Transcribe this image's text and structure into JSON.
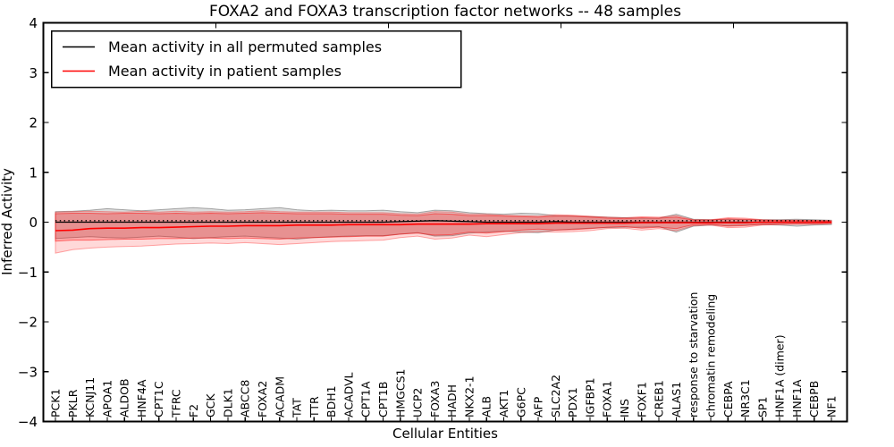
{
  "title": "FOXA2 and FOXA3 transcription factor networks -- 48 samples",
  "legend": {
    "position": "upper left",
    "entries": [
      {
        "label": "Mean activity in all permuted samples",
        "color": "#000000"
      },
      {
        "label": "Mean activity in patient samples",
        "color": "#ff0000"
      }
    ]
  },
  "chart_data": {
    "type": "line",
    "title": "FOXA2 and FOXA3 transcription factor networks -- 48 samples",
    "xlabel": "Cellular Entities",
    "ylabel": "Inferred Activity",
    "ylim": [
      -4,
      4
    ],
    "yticks": [
      -4,
      -3,
      -2,
      -1,
      0,
      1,
      2,
      3,
      4
    ],
    "grid": false,
    "legend_position": "upper left",
    "categories": [
      "PCK1",
      "PKLR",
      "KCNJ11",
      "APOA1",
      "ALDOB",
      "HNF4A",
      "CPT1C",
      "TFRC",
      "F2",
      "GCK",
      "DLK1",
      "ABCC8",
      "FOXA2",
      "ACADM",
      "TAT",
      "TTR",
      "BDH1",
      "ACADVL",
      "CPT1A",
      "CPT1B",
      "HMGCS1",
      "UCP2",
      "FOXA3",
      "HADH",
      "NKX2-1",
      "ALB",
      "AKT1",
      "G6PC",
      "AFP",
      "SLC2A2",
      "PDX1",
      "IGFBP1",
      "FOXA1",
      "INS",
      "FOXF1",
      "CREB1",
      "ALAS1",
      "response to starvation",
      "chromatin remodeling",
      "CEBPA",
      "NR3C1",
      "SP1",
      "HNF1A (dimer)",
      "HNF1A",
      "CEBPB",
      "NF1"
    ],
    "series": [
      {
        "name": "Mean activity in all permuted samples",
        "color": "#000000",
        "style": "solid",
        "width": 1.3,
        "values": [
          0,
          0,
          0,
          0,
          0,
          0,
          0,
          0,
          0,
          0,
          0,
          0,
          0,
          0,
          0,
          0,
          0,
          0,
          0,
          0,
          0.01,
          0.02,
          0.03,
          0.02,
          0.01,
          0,
          0,
          0,
          0,
          0.01,
          0,
          0,
          0,
          0,
          0,
          0,
          0,
          0,
          0,
          0,
          0,
          0,
          0,
          0,
          0,
          0
        ]
      },
      {
        "name": "Permuted mean dotted overlay",
        "color": "#000000",
        "style": "dotted",
        "width": 1.4,
        "values": [
          0.03,
          0.03,
          0.03,
          0.03,
          0.03,
          0.03,
          0.03,
          0.03,
          0.03,
          0.03,
          0.03,
          0.03,
          0.03,
          0.03,
          0.03,
          0.03,
          0.03,
          0.03,
          0.03,
          0.03,
          0.03,
          0.03,
          0.03,
          0.03,
          0.03,
          0.03,
          0.03,
          0.03,
          0.03,
          0.03,
          0.03,
          0.03,
          0.03,
          0.03,
          0.03,
          0.03,
          0.03,
          0.03,
          0.03,
          0.03,
          0.03,
          0.03,
          0.03,
          0.03,
          0.03,
          0.03
        ]
      },
      {
        "name": "Mean activity in patient samples",
        "color": "#ff0000",
        "style": "solid",
        "width": 1.6,
        "values": [
          -0.17,
          -0.16,
          -0.13,
          -0.12,
          -0.12,
          -0.11,
          -0.11,
          -0.1,
          -0.09,
          -0.08,
          -0.08,
          -0.07,
          -0.07,
          -0.07,
          -0.06,
          -0.06,
          -0.06,
          -0.05,
          -0.05,
          -0.05,
          -0.05,
          -0.04,
          -0.04,
          -0.04,
          -0.04,
          -0.03,
          -0.03,
          -0.03,
          -0.03,
          -0.02,
          -0.02,
          -0.02,
          -0.02,
          -0.02,
          -0.01,
          -0.01,
          -0.01,
          -0.01,
          -0.01,
          -0.01,
          -0.01,
          0,
          0,
          0,
          0,
          0
        ]
      }
    ],
    "bands": [
      {
        "name": "permuted-samples-range",
        "color": "#000000",
        "opacity": 0.14,
        "lower": [
          -0.33,
          -0.31,
          -0.29,
          -0.31,
          -0.32,
          -0.3,
          -0.28,
          -0.3,
          -0.33,
          -0.31,
          -0.29,
          -0.28,
          -0.3,
          -0.32,
          -0.34,
          -0.31,
          -0.29,
          -0.28,
          -0.27,
          -0.27,
          -0.24,
          -0.21,
          -0.28,
          -0.27,
          -0.22,
          -0.2,
          -0.18,
          -0.2,
          -0.21,
          -0.16,
          -0.14,
          -0.12,
          -0.11,
          -0.1,
          -0.1,
          -0.09,
          -0.2,
          -0.08,
          -0.06,
          -0.07,
          -0.06,
          -0.05,
          -0.06,
          -0.08,
          -0.06,
          -0.05
        ],
        "upper": [
          0.21,
          0.22,
          0.24,
          0.27,
          0.25,
          0.23,
          0.25,
          0.27,
          0.29,
          0.27,
          0.24,
          0.25,
          0.27,
          0.29,
          0.25,
          0.23,
          0.24,
          0.23,
          0.23,
          0.24,
          0.21,
          0.19,
          0.24,
          0.23,
          0.19,
          0.17,
          0.16,
          0.18,
          0.17,
          0.13,
          0.12,
          0.11,
          0.1,
          0.09,
          0.08,
          0.08,
          0.16,
          0.06,
          0.05,
          0.06,
          0.05,
          0.05,
          0.05,
          0.06,
          0.05,
          0.04
        ]
      },
      {
        "name": "patient-samples-range-outer",
        "color": "#ff0000",
        "opacity": 0.15,
        "lower": [
          -0.62,
          -0.55,
          -0.52,
          -0.5,
          -0.49,
          -0.48,
          -0.46,
          -0.44,
          -0.43,
          -0.42,
          -0.43,
          -0.41,
          -0.43,
          -0.45,
          -0.43,
          -0.41,
          -0.39,
          -0.38,
          -0.37,
          -0.36,
          -0.31,
          -0.28,
          -0.34,
          -0.32,
          -0.26,
          -0.29,
          -0.25,
          -0.21,
          -0.19,
          -0.2,
          -0.19,
          -0.17,
          -0.13,
          -0.12,
          -0.16,
          -0.13,
          -0.17,
          -0.07,
          -0.06,
          -0.11,
          -0.1,
          -0.06,
          -0.05,
          -0.04,
          -0.04,
          -0.03
        ],
        "upper": [
          0.2,
          0.21,
          0.22,
          0.21,
          0.2,
          0.22,
          0.2,
          0.22,
          0.2,
          0.21,
          0.2,
          0.21,
          0.23,
          0.21,
          0.2,
          0.2,
          0.2,
          0.19,
          0.19,
          0.19,
          0.17,
          0.16,
          0.21,
          0.2,
          0.16,
          0.16,
          0.14,
          0.13,
          0.12,
          0.15,
          0.14,
          0.12,
          0.1,
          0.09,
          0.11,
          0.1,
          0.13,
          0.05,
          0.05,
          0.09,
          0.08,
          0.05,
          0.04,
          0.04,
          0.03,
          0.03
        ]
      },
      {
        "name": "patient-samples-range-inner",
        "color": "#ff0000",
        "opacity": 0.22,
        "lower": [
          -0.38,
          -0.36,
          -0.36,
          -0.35,
          -0.34,
          -0.34,
          -0.33,
          -0.33,
          -0.32,
          -0.32,
          -0.33,
          -0.32,
          -0.33,
          -0.34,
          -0.32,
          -0.31,
          -0.3,
          -0.29,
          -0.28,
          -0.28,
          -0.24,
          -0.22,
          -0.26,
          -0.25,
          -0.2,
          -0.22,
          -0.19,
          -0.16,
          -0.14,
          -0.16,
          -0.15,
          -0.13,
          -0.1,
          -0.09,
          -0.12,
          -0.1,
          -0.13,
          -0.05,
          -0.04,
          -0.08,
          -0.07,
          -0.04,
          -0.03,
          -0.03,
          -0.03,
          -0.02
        ],
        "upper": [
          0.17,
          0.18,
          0.18,
          0.17,
          0.18,
          0.18,
          0.17,
          0.18,
          0.17,
          0.18,
          0.17,
          0.18,
          0.19,
          0.18,
          0.17,
          0.17,
          0.17,
          0.16,
          0.16,
          0.16,
          0.14,
          0.13,
          0.17,
          0.16,
          0.13,
          0.13,
          0.12,
          0.11,
          0.1,
          0.12,
          0.12,
          0.1,
          0.08,
          0.07,
          0.09,
          0.08,
          0.1,
          0.04,
          0.04,
          0.07,
          0.06,
          0.04,
          0.03,
          0.03,
          0.03,
          0.02
        ]
      }
    ]
  }
}
